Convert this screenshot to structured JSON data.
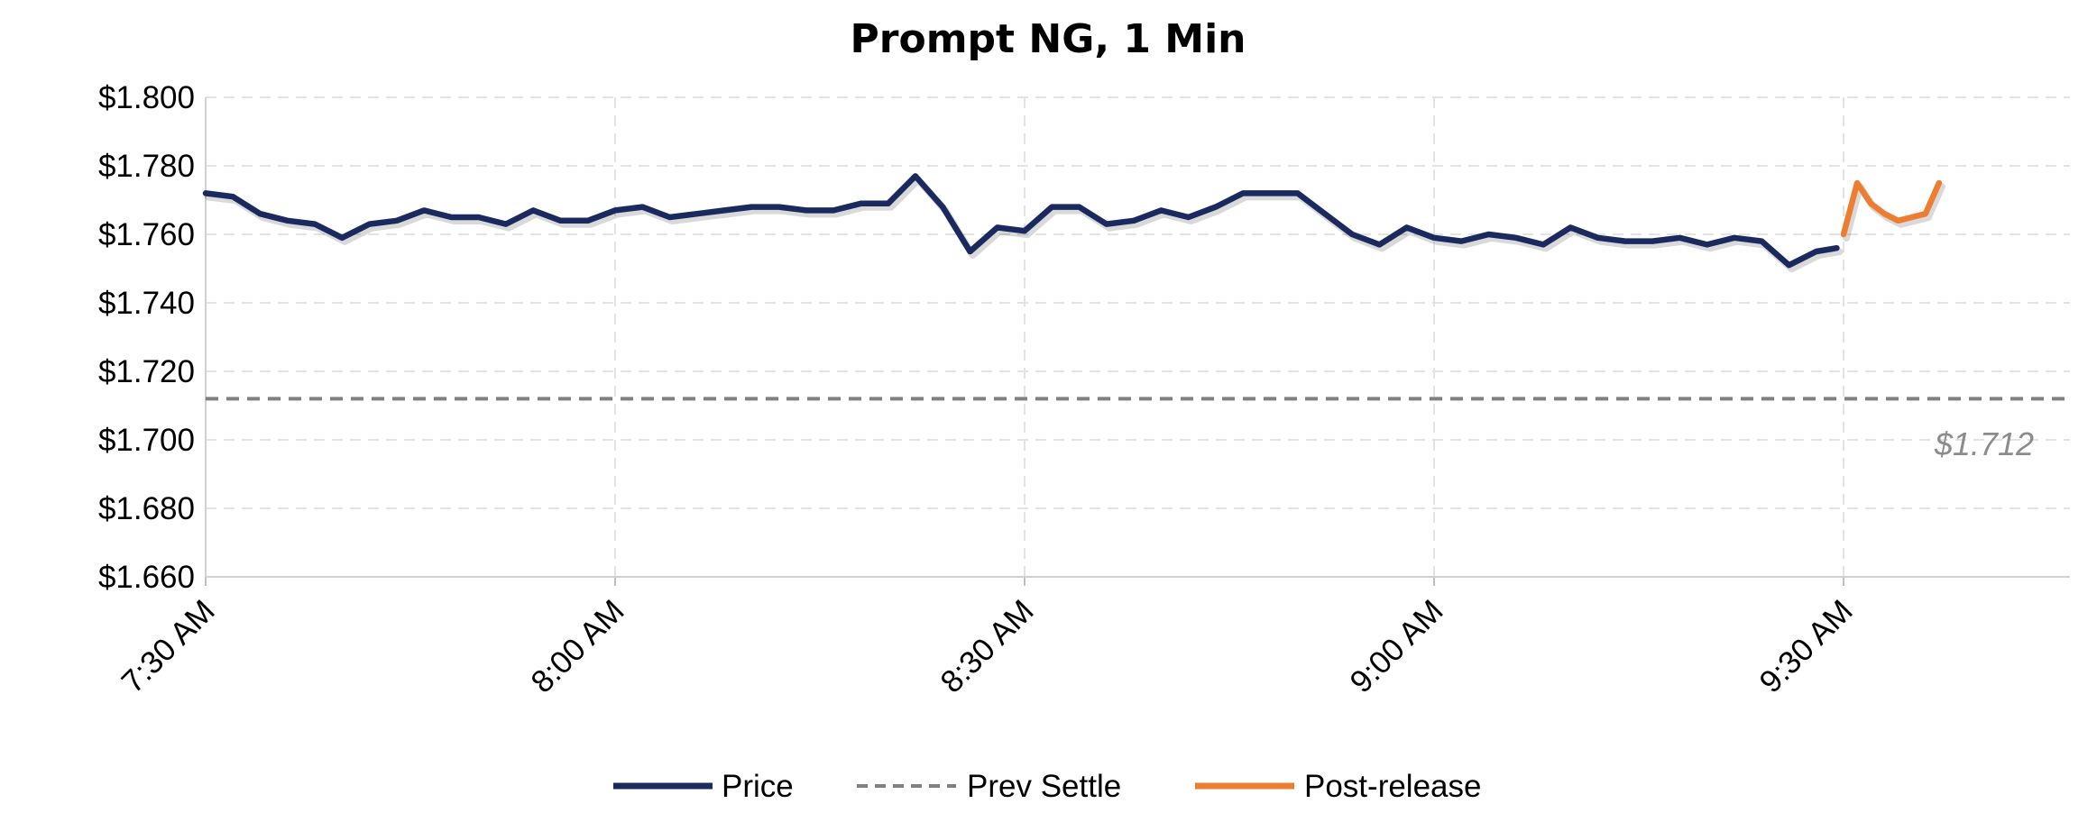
{
  "chart_data": {
    "type": "line",
    "title": "Prompt NG, 1 Min",
    "xlabel": "",
    "ylabel": "",
    "ylim": [
      1.66,
      1.8
    ],
    "y_ticks": [
      "$1.660",
      "$1.680",
      "$1.700",
      "$1.720",
      "$1.740",
      "$1.760",
      "$1.780",
      "$1.800"
    ],
    "x_ticks": [
      "7:30 AM",
      "8:00 AM",
      "8:30 AM",
      "9:00 AM",
      "9:30 AM"
    ],
    "x_range_minutes": [
      0,
      136
    ],
    "grid": true,
    "legend_position": "bottom",
    "series": [
      {
        "name": "Price",
        "color": "#1b2a5e",
        "style": "solid",
        "x": [
          0,
          2,
          4,
          6,
          8,
          10,
          12,
          14,
          16,
          18,
          20,
          22,
          24,
          26,
          28,
          30,
          32,
          34,
          36,
          38,
          40,
          42,
          44,
          46,
          48,
          50,
          52,
          54,
          56,
          58,
          60,
          62,
          64,
          66,
          68,
          70,
          72,
          74,
          76,
          78,
          80,
          82,
          84,
          86,
          88,
          90,
          92,
          94,
          96,
          98,
          100,
          102,
          104,
          106,
          108,
          110,
          112,
          114,
          116,
          118,
          119.5
        ],
        "values": [
          1.772,
          1.771,
          1.766,
          1.764,
          1.763,
          1.759,
          1.763,
          1.764,
          1.767,
          1.765,
          1.765,
          1.763,
          1.767,
          1.764,
          1.764,
          1.767,
          1.768,
          1.765,
          1.766,
          1.767,
          1.768,
          1.768,
          1.767,
          1.767,
          1.769,
          1.769,
          1.777,
          1.768,
          1.755,
          1.762,
          1.761,
          1.768,
          1.768,
          1.763,
          1.764,
          1.767,
          1.765,
          1.768,
          1.772,
          1.772,
          1.772,
          1.766,
          1.76,
          1.757,
          1.762,
          1.759,
          1.758,
          1.76,
          1.759,
          1.757,
          1.762,
          1.759,
          1.758,
          1.758,
          1.759,
          1.757,
          1.759,
          1.758,
          1.751,
          1.755,
          1.756
        ]
      },
      {
        "name": "Prev Settle",
        "color": "#808080",
        "style": "dashed",
        "value": 1.712,
        "label": "$1.712"
      },
      {
        "name": "Post-release",
        "color": "#ed7d31",
        "style": "solid",
        "x": [
          120,
          121,
          122,
          123,
          124,
          125,
          126,
          127
        ],
        "values": [
          1.76,
          1.775,
          1.769,
          1.766,
          1.764,
          1.765,
          1.766,
          1.775
        ]
      }
    ]
  }
}
